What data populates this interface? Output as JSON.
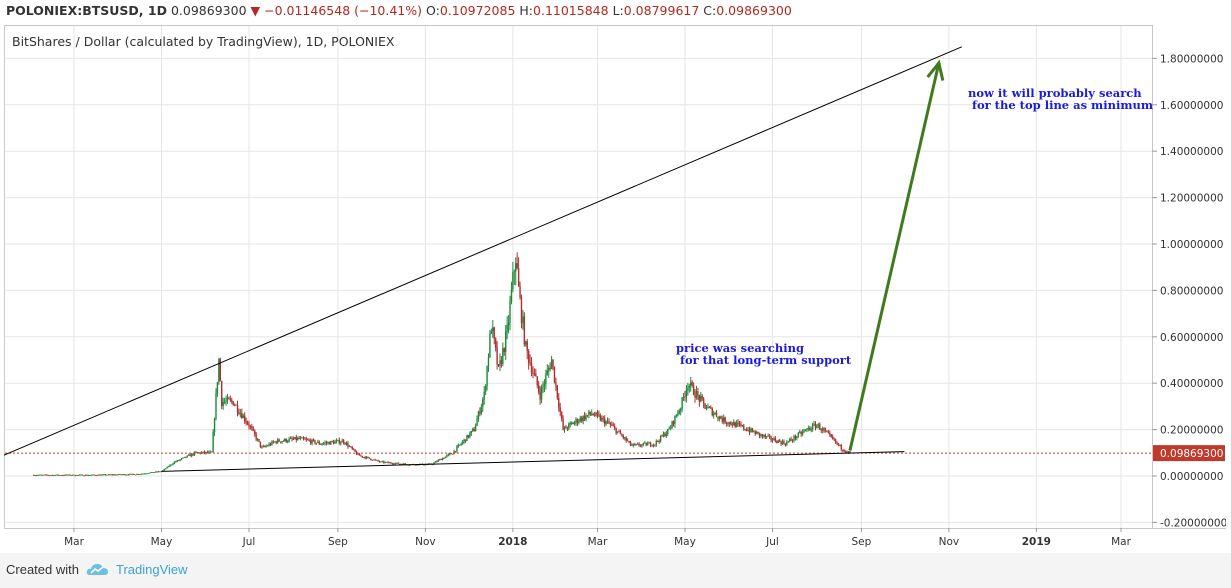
{
  "header": {
    "symbol": "POLONIEX:BTSUSD, 1D",
    "last": "0.09869300",
    "arrow": "▼",
    "change": "−0.01146548 (−10.41%)",
    "o_label": "O:",
    "o_value": "0.10972085",
    "h_label": "H:",
    "h_value": "0.11015848",
    "l_label": "L:",
    "l_value": "0.08799617",
    "c_label": "C:",
    "c_value": "0.09869300"
  },
  "chart_subtitle": "BitShares / Dollar (calculated by TradingView), 1D, POLONIEX",
  "annotations": {
    "top_line_1": "now it will probably search",
    "top_line_2": " for the top line as minimum",
    "support_1": "price was searching",
    "support_2": " for that long-term support"
  },
  "footer": {
    "created_with": "Created with",
    "brand": "TradingView"
  },
  "colors": {
    "up": "#1d8a3a",
    "down": "#b03030",
    "trend_line": "#000000",
    "arrow": "#3f7a1e",
    "price_line": "#c0392b",
    "price_label_bg": "#c0392b",
    "annotation": "#1a1ae0",
    "grid": "#e6e6e6"
  },
  "chart_data": {
    "type": "candlestick",
    "title": "BitShares / Dollar (calculated by TradingView), 1D, POLONIEX",
    "ylim": [
      -0.2,
      1.8
    ],
    "y_ticks": [
      "-0.20000000",
      "0.00000000",
      "0.20000000",
      "0.40000000",
      "0.60000000",
      "0.80000000",
      "1.00000000",
      "1.20000000",
      "1.40000000",
      "1.60000000",
      "1.80000000"
    ],
    "x_ticks": [
      "Mar",
      "May",
      "Jul",
      "Sep",
      "Nov",
      "2018",
      "Mar",
      "May",
      "Jul",
      "Sep",
      "Nov",
      "2019",
      "Mar"
    ],
    "current_price": "0.09869300",
    "price_series": [
      {
        "date": "2017-02-01",
        "close": 0.004
      },
      {
        "date": "2017-03-15",
        "close": 0.004
      },
      {
        "date": "2017-04-15",
        "close": 0.008
      },
      {
        "date": "2017-05-01",
        "close": 0.02
      },
      {
        "date": "2017-05-10",
        "close": 0.06
      },
      {
        "date": "2017-05-25",
        "close": 0.1
      },
      {
        "date": "2017-06-05",
        "close": 0.1
      },
      {
        "date": "2017-06-10",
        "close": 0.5
      },
      {
        "date": "2017-06-12",
        "close": 0.32
      },
      {
        "date": "2017-06-20",
        "close": 0.32
      },
      {
        "date": "2017-07-01",
        "close": 0.22
      },
      {
        "date": "2017-07-10",
        "close": 0.12
      },
      {
        "date": "2017-07-20",
        "close": 0.15
      },
      {
        "date": "2017-08-05",
        "close": 0.16
      },
      {
        "date": "2017-08-20",
        "close": 0.14
      },
      {
        "date": "2017-09-05",
        "close": 0.15
      },
      {
        "date": "2017-09-15",
        "close": 0.09
      },
      {
        "date": "2017-10-01",
        "close": 0.06
      },
      {
        "date": "2017-10-20",
        "close": 0.05
      },
      {
        "date": "2017-11-05",
        "close": 0.05
      },
      {
        "date": "2017-11-20",
        "close": 0.1
      },
      {
        "date": "2017-12-05",
        "close": 0.2
      },
      {
        "date": "2017-12-12",
        "close": 0.35
      },
      {
        "date": "2017-12-17",
        "close": 0.65
      },
      {
        "date": "2017-12-22",
        "close": 0.45
      },
      {
        "date": "2017-12-28",
        "close": 0.62
      },
      {
        "date": "2018-01-03",
        "close": 0.95
      },
      {
        "date": "2018-01-05",
        "close": 0.8
      },
      {
        "date": "2018-01-10",
        "close": 0.55
      },
      {
        "date": "2018-01-20",
        "close": 0.35
      },
      {
        "date": "2018-01-28",
        "close": 0.5
      },
      {
        "date": "2018-02-05",
        "close": 0.2
      },
      {
        "date": "2018-02-15",
        "close": 0.24
      },
      {
        "date": "2018-02-25",
        "close": 0.27
      },
      {
        "date": "2018-03-10",
        "close": 0.22
      },
      {
        "date": "2018-03-25",
        "close": 0.13
      },
      {
        "date": "2018-04-10",
        "close": 0.14
      },
      {
        "date": "2018-04-20",
        "close": 0.2
      },
      {
        "date": "2018-04-28",
        "close": 0.3
      },
      {
        "date": "2018-05-03",
        "close": 0.4
      },
      {
        "date": "2018-05-15",
        "close": 0.3
      },
      {
        "date": "2018-05-28",
        "close": 0.24
      },
      {
        "date": "2018-06-10",
        "close": 0.21
      },
      {
        "date": "2018-06-25",
        "close": 0.17
      },
      {
        "date": "2018-07-10",
        "close": 0.14
      },
      {
        "date": "2018-07-25",
        "close": 0.2
      },
      {
        "date": "2018-08-01",
        "close": 0.22
      },
      {
        "date": "2018-08-10",
        "close": 0.17
      },
      {
        "date": "2018-08-18",
        "close": 0.12
      },
      {
        "date": "2018-08-24",
        "close": 0.0987
      }
    ],
    "drawings": [
      {
        "name": "upper-trend-line",
        "from": {
          "date": "2017-01-15",
          "price": 0.1
        },
        "to": {
          "date": "2018-11-10",
          "price": 1.85
        }
      },
      {
        "name": "lower-support-line",
        "from": {
          "date": "2017-05-01",
          "price": 0.02
        },
        "to": {
          "date": "2018-10-01",
          "price": 0.105
        }
      },
      {
        "name": "projection-arrow",
        "from": {
          "date": "2018-08-24",
          "price": 0.11
        },
        "to": {
          "date": "2018-10-25",
          "price": 1.78
        }
      }
    ]
  }
}
